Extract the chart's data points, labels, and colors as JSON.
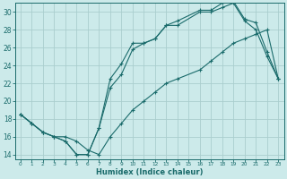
{
  "xlabel": "Humidex (Indice chaleur)",
  "bg_color": "#cceaea",
  "grid_color": "#aacece",
  "line_color": "#1a6b6b",
  "xlim": [
    -0.5,
    23.5
  ],
  "ylim": [
    13.5,
    31.0
  ],
  "xtick_vals": [
    0,
    1,
    2,
    3,
    4,
    5,
    6,
    7,
    8,
    9,
    10,
    11,
    12,
    13,
    14,
    15,
    16,
    17,
    18,
    19,
    20,
    21,
    22,
    23
  ],
  "ytick_vals": [
    14,
    16,
    18,
    20,
    22,
    24,
    26,
    28,
    30
  ],
  "line1_x": [
    0,
    1,
    2,
    3,
    4,
    5,
    6,
    7,
    8,
    9,
    10,
    11,
    12,
    13,
    14,
    16,
    17,
    18,
    19,
    20,
    21,
    22,
    23
  ],
  "line1_y": [
    18.5,
    17.5,
    16.5,
    16.0,
    15.5,
    14.0,
    14.0,
    17.0,
    22.5,
    24.2,
    26.5,
    26.5,
    27.0,
    28.5,
    29.0,
    30.2,
    30.2,
    31.0,
    31.2,
    29.2,
    28.8,
    25.5,
    22.5
  ],
  "line2_x": [
    0,
    1,
    2,
    3,
    4,
    5,
    6,
    7,
    8,
    9,
    10,
    11,
    12,
    13,
    14,
    16,
    17,
    18,
    19,
    20,
    21,
    22,
    23
  ],
  "line2_y": [
    18.5,
    17.5,
    16.5,
    16.0,
    15.5,
    14.0,
    14.0,
    17.0,
    21.5,
    23.0,
    25.8,
    26.5,
    27.0,
    28.5,
    28.5,
    30.0,
    30.0,
    30.5,
    31.0,
    29.0,
    28.0,
    25.0,
    22.5
  ],
  "line3_x": [
    0,
    1,
    2,
    3,
    4,
    5,
    6,
    7,
    8,
    9,
    10,
    11,
    12,
    13,
    14,
    16,
    17,
    18,
    19,
    20,
    21,
    22,
    23
  ],
  "line3_y": [
    18.5,
    17.5,
    16.5,
    16.0,
    16.0,
    15.5,
    14.5,
    14.0,
    16.0,
    17.5,
    19.0,
    20.0,
    21.0,
    22.0,
    22.5,
    23.5,
    24.5,
    25.5,
    26.5,
    27.0,
    27.5,
    28.0,
    22.5
  ]
}
